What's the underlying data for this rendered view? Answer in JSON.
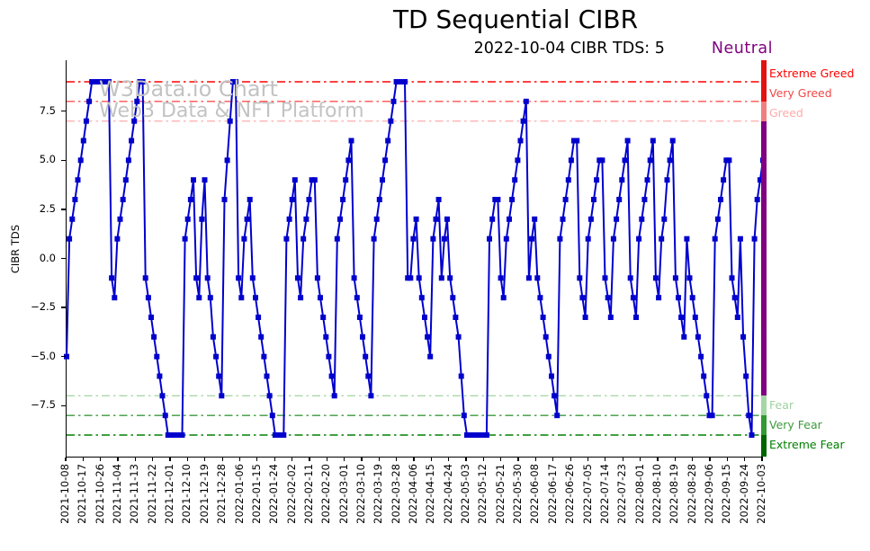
{
  "title": "TD Sequential CIBR",
  "subtitle": {
    "date_text": "2022-10-04 CIBR TDS: 5",
    "status": "Neutral",
    "status_color": "#800080"
  },
  "watermark": {
    "line1": "W3Data.io Chart",
    "line2": "Web3 Data & NFT Platform"
  },
  "chart_data": {
    "type": "line",
    "title": "TD Sequential CIBR",
    "xlabel": "",
    "ylabel": "CIBR TDS",
    "ylim": [
      -10.1,
      10.1
    ],
    "grid": false,
    "legend_position": "none",
    "yticks": [
      {
        "value": 7.5,
        "label": "7.5"
      },
      {
        "value": 5.0,
        "label": "5.0"
      },
      {
        "value": 2.5,
        "label": "2.5"
      },
      {
        "value": 0.0,
        "label": "0.0"
      },
      {
        "value": -2.5,
        "label": "−2.5"
      },
      {
        "value": -5.0,
        "label": "−5.0"
      },
      {
        "value": -7.5,
        "label": "−7.5"
      }
    ],
    "x_tick_labels": [
      "2021-10-08",
      "2021-10-17",
      "2021-10-26",
      "2021-11-04",
      "2021-11-13",
      "2021-11-22",
      "2021-12-01",
      "2021-12-10",
      "2021-12-19",
      "2021-12-28",
      "2022-01-06",
      "2022-01-15",
      "2022-01-24",
      "2022-02-02",
      "2022-02-11",
      "2022-02-20",
      "2022-03-01",
      "2022-03-10",
      "2022-03-19",
      "2022-03-28",
      "2022-04-06",
      "2022-04-15",
      "2022-04-24",
      "2022-05-03",
      "2022-05-12",
      "2022-05-21",
      "2022-05-30",
      "2022-06-08",
      "2022-06-17",
      "2022-06-26",
      "2022-07-05",
      "2022-07-14",
      "2022-07-23",
      "2022-08-01",
      "2022-08-10",
      "2022-08-19",
      "2022-08-28",
      "2022-09-06",
      "2022-09-15",
      "2022-09-24",
      "2022-10-03"
    ],
    "thresholds": [
      {
        "label": "Extreme Greed",
        "value": 9,
        "color": "#ff0000",
        "label_color": "#ff0000"
      },
      {
        "label": "Very Greed",
        "value": 8,
        "color": "#ff5050",
        "label_color": "#f04848"
      },
      {
        "label": "Greed",
        "value": 7,
        "color": "#ffb3b3",
        "label_color": "#ffabab"
      },
      {
        "label": "Fear",
        "value": -7,
        "color": "#a8d8a8",
        "label_color": "#a0d0a0"
      },
      {
        "label": "Very Fear",
        "value": -8,
        "color": "#3d9a3d",
        "label_color": "#3d9a3d"
      },
      {
        "label": "Extreme Fear",
        "value": -9,
        "color": "#008000",
        "label_color": "#008000"
      }
    ],
    "right_bar": {
      "boundaries": [
        8,
        7,
        -7,
        -8,
        -9
      ],
      "colors": [
        "#e31212",
        "#f08080",
        "#800080",
        "#a5d6a5",
        "#339933",
        "#006400"
      ]
    },
    "series": [
      {
        "name": "CIBR TDS",
        "color": "#0000cd",
        "marker": "square",
        "values": [
          -5,
          1,
          2,
          3,
          4,
          5,
          6,
          7,
          8,
          9,
          9,
          9,
          9,
          9,
          9,
          9,
          -1,
          -2,
          1,
          2,
          3,
          4,
          5,
          6,
          7,
          8,
          9,
          9,
          -1,
          -2,
          -3,
          -4,
          -5,
          -6,
          -7,
          -8,
          -9,
          -9,
          -9,
          -9,
          -9,
          -9,
          1,
          2,
          3,
          4,
          -1,
          -2,
          2,
          4,
          -1,
          -2,
          -4,
          -5,
          -6,
          -7,
          3,
          5,
          7,
          9,
          9,
          -1,
          -2,
          1,
          2,
          3,
          -1,
          -2,
          -3,
          -4,
          -5,
          -6,
          -7,
          -8,
          -9,
          -9,
          -9,
          -9,
          1,
          2,
          3,
          4,
          -1,
          -2,
          1,
          2,
          3,
          4,
          4,
          -1,
          -2,
          -3,
          -4,
          -5,
          -6,
          -7,
          1,
          2,
          3,
          4,
          5,
          6,
          -1,
          -2,
          -3,
          -4,
          -5,
          -6,
          -7,
          1,
          2,
          3,
          4,
          5,
          6,
          7,
          8,
          9,
          9,
          9,
          9,
          -1,
          -1,
          1,
          2,
          -1,
          -2,
          -3,
          -4,
          -5,
          1,
          2,
          3,
          -1,
          1,
          2,
          -1,
          -2,
          -3,
          -4,
          -6,
          -8,
          -9,
          -9,
          -9,
          -9,
          -9,
          -9,
          -9,
          -9,
          1,
          2,
          3,
          3,
          -1,
          -2,
          1,
          2,
          3,
          4,
          5,
          6,
          7,
          8,
          -1,
          1,
          2,
          -1,
          -2,
          -3,
          -4,
          -5,
          -6,
          -7,
          -8,
          1,
          2,
          3,
          4,
          5,
          6,
          6,
          -1,
          -2,
          -3,
          1,
          2,
          3,
          4,
          5,
          5,
          -1,
          -2,
          -3,
          1,
          2,
          3,
          4,
          5,
          6,
          -1,
          -2,
          -3,
          1,
          2,
          3,
          4,
          5,
          6,
          -1,
          -2,
          1,
          2,
          4,
          5,
          6,
          -1,
          -2,
          -3,
          -4,
          1,
          -1,
          -2,
          -3,
          -4,
          -5,
          -6,
          -7,
          -8,
          -8,
          1,
          2,
          3,
          4,
          5,
          5,
          -1,
          -2,
          -3,
          1,
          -4,
          -6,
          -8,
          -9,
          1,
          3,
          4,
          5
        ]
      }
    ]
  }
}
